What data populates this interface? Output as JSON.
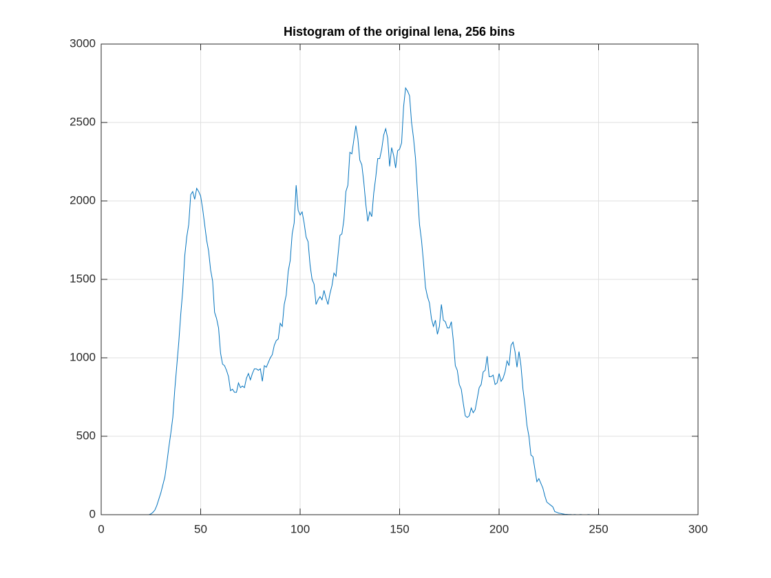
{
  "chart_data": {
    "type": "line",
    "title": "Histogram of the original lena, 256 bins",
    "x": [
      0,
      1,
      2,
      3,
      4,
      5,
      6,
      7,
      8,
      9,
      10,
      11,
      12,
      13,
      14,
      15,
      16,
      17,
      18,
      19,
      20,
      21,
      22,
      23,
      24,
      25,
      26,
      27,
      28,
      29,
      30,
      31,
      32,
      33,
      34,
      35,
      36,
      37,
      38,
      39,
      40,
      41,
      42,
      43,
      44,
      45,
      46,
      47,
      48,
      49,
      50,
      51,
      52,
      53,
      54,
      55,
      56,
      57,
      58,
      59,
      60,
      61,
      62,
      63,
      64,
      65,
      66,
      67,
      68,
      69,
      70,
      71,
      72,
      73,
      74,
      75,
      76,
      77,
      78,
      79,
      80,
      81,
      82,
      83,
      84,
      85,
      86,
      87,
      88,
      89,
      90,
      91,
      92,
      93,
      94,
      95,
      96,
      97,
      98,
      99,
      100,
      101,
      102,
      103,
      104,
      105,
      106,
      107,
      108,
      109,
      110,
      111,
      112,
      113,
      114,
      115,
      116,
      117,
      118,
      119,
      120,
      121,
      122,
      123,
      124,
      125,
      126,
      127,
      128,
      129,
      130,
      131,
      132,
      133,
      134,
      135,
      136,
      137,
      138,
      139,
      140,
      141,
      142,
      143,
      144,
      145,
      146,
      147,
      148,
      149,
      150,
      151,
      152,
      153,
      154,
      155,
      156,
      157,
      158,
      159,
      160,
      161,
      162,
      163,
      164,
      165,
      166,
      167,
      168,
      169,
      170,
      171,
      172,
      173,
      174,
      175,
      176,
      177,
      178,
      179,
      180,
      181,
      182,
      183,
      184,
      185,
      186,
      187,
      188,
      189,
      190,
      191,
      192,
      193,
      194,
      195,
      196,
      197,
      198,
      199,
      200,
      201,
      202,
      203,
      204,
      205,
      206,
      207,
      208,
      209,
      210,
      211,
      212,
      213,
      214,
      215,
      216,
      217,
      218,
      219,
      220,
      221,
      222,
      223,
      224,
      225,
      226,
      227,
      228,
      229,
      230,
      231,
      232,
      233,
      234,
      235,
      236,
      237,
      238,
      239,
      240,
      241,
      242,
      243,
      244,
      245,
      246,
      247,
      248,
      249,
      250,
      251,
      252,
      253,
      254,
      255
    ],
    "values": [
      0,
      0,
      0,
      0,
      0,
      0,
      0,
      0,
      0,
      0,
      0,
      0,
      0,
      0,
      0,
      0,
      0,
      0,
      0,
      0,
      0,
      0,
      0,
      0,
      0,
      5,
      15,
      30,
      60,
      100,
      140,
      190,
      240,
      330,
      430,
      520,
      620,
      800,
      950,
      1100,
      1280,
      1430,
      1650,
      1770,
      1850,
      2040,
      2060,
      2010,
      2080,
      2060,
      2030,
      1950,
      1850,
      1750,
      1680,
      1560,
      1490,
      1290,
      1250,
      1190,
      1030,
      960,
      950,
      920,
      880,
      790,
      800,
      780,
      780,
      840,
      810,
      820,
      810,
      870,
      900,
      860,
      900,
      930,
      930,
      920,
      930,
      850,
      950,
      940,
      970,
      1000,
      1020,
      1080,
      1110,
      1120,
      1220,
      1200,
      1340,
      1400,
      1550,
      1620,
      1790,
      1860,
      2100,
      1940,
      1910,
      1930,
      1860,
      1770,
      1740,
      1590,
      1500,
      1470,
      1340,
      1370,
      1390,
      1370,
      1430,
      1380,
      1340,
      1410,
      1460,
      1540,
      1520,
      1650,
      1780,
      1790,
      1880,
      2060,
      2100,
      2310,
      2300,
      2390,
      2480,
      2400,
      2260,
      2230,
      2120,
      1980,
      1870,
      1930,
      1900,
      2050,
      2150,
      2270,
      2270,
      2330,
      2420,
      2460,
      2400,
      2220,
      2340,
      2290,
      2210,
      2320,
      2330,
      2370,
      2600,
      2720,
      2700,
      2670,
      2500,
      2400,
      2270,
      2050,
      1850,
      1750,
      1610,
      1450,
      1390,
      1350,
      1250,
      1200,
      1240,
      1150,
      1200,
      1340,
      1240,
      1230,
      1190,
      1190,
      1230,
      1110,
      950,
      920,
      830,
      800,
      710,
      630,
      620,
      630,
      680,
      650,
      670,
      740,
      810,
      830,
      910,
      920,
      1010,
      880,
      880,
      890,
      830,
      840,
      900,
      850,
      870,
      910,
      980,
      950,
      1080,
      1100,
      1040,
      940,
      1040,
      950,
      800,
      700,
      570,
      500,
      380,
      370,
      290,
      210,
      230,
      200,
      170,
      120,
      80,
      70,
      60,
      50,
      20,
      15,
      10,
      8,
      5,
      3,
      2,
      1,
      1,
      0,
      1,
      0,
      0,
      1,
      0,
      0,
      0,
      1,
      0,
      0,
      0,
      0,
      1,
      0,
      0,
      0,
      0,
      0
    ],
    "color": "#0072bd",
    "xlim": [
      0,
      300
    ],
    "xticks": [
      0,
      50,
      100,
      150,
      200,
      250,
      300
    ],
    "ylim": [
      0,
      3000
    ],
    "yticks": [
      0,
      500,
      1000,
      1500,
      2000,
      2500,
      3000
    ],
    "grid": true
  }
}
